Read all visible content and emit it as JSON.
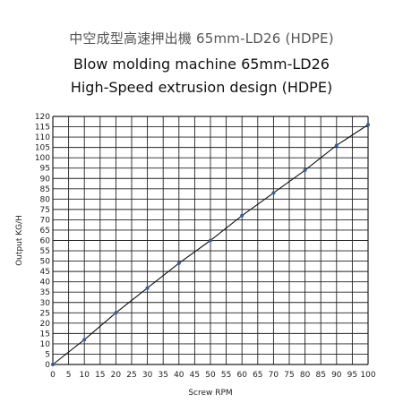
{
  "chart_data": {
    "type": "line",
    "title": "中空成型高速押出機 65mm-LD26 (HDPE)",
    "subtitle": "Blow molding machine 65mm-LD26",
    "subtitle2": "High-Speed extrusion design (HDPE)",
    "xlabel": "Screw RPM",
    "ylabel": "Output KG/H",
    "xlim": [
      0,
      100
    ],
    "ylim": [
      0,
      120
    ],
    "x_ticks": [
      "0",
      "5",
      "10",
      "15",
      "20",
      "25",
      "30",
      "35",
      "40",
      "45",
      "50",
      "55",
      "60",
      "65",
      "70",
      "75",
      "80",
      "85",
      "90",
      "95",
      "100"
    ],
    "y_ticks": [
      "0",
      "5",
      "10",
      "15",
      "20",
      "25",
      "30",
      "35",
      "40",
      "45",
      "50",
      "55",
      "60",
      "65",
      "70",
      "75",
      "80",
      "85",
      "90",
      "95",
      "100",
      "105",
      "110",
      "115",
      "120"
    ],
    "grid": true,
    "series": [
      {
        "x": [
          0,
          10,
          20,
          30,
          40,
          50,
          60,
          70,
          80,
          90,
          100
        ],
        "values": [
          0,
          12,
          25,
          37,
          49,
          60,
          72,
          83,
          94,
          106,
          116
        ],
        "color": "#2e5fa8"
      }
    ]
  }
}
